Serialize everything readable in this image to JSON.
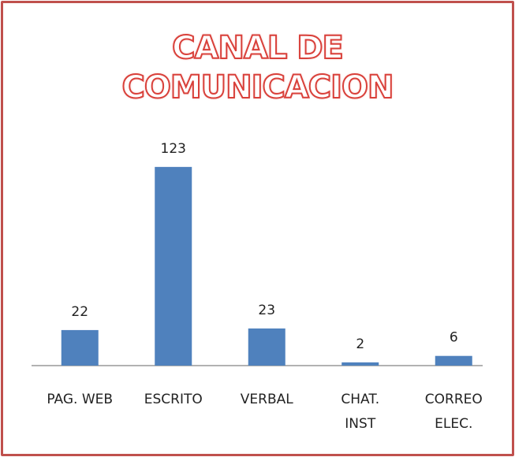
{
  "chart_data": {
    "type": "bar",
    "title": "CANAL DE\nCOMUNICACION",
    "categories": [
      "PAG. WEB",
      "ESCRITO",
      "VERBAL",
      "CHAT.\nINST",
      "CORREO\nELEC."
    ],
    "values": [
      22,
      123,
      23,
      2,
      6
    ],
    "color": "#4f81bd"
  }
}
